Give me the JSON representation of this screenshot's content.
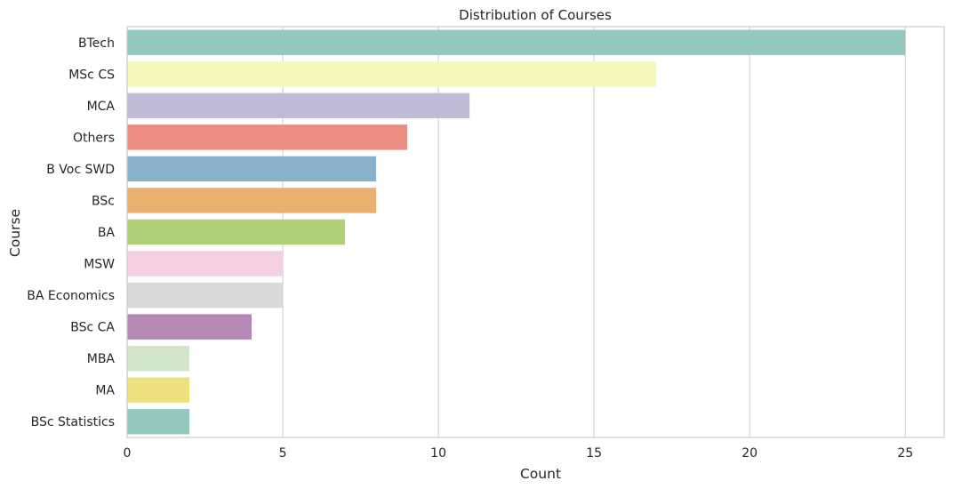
{
  "chart_data": {
    "type": "bar",
    "orientation": "horizontal",
    "title": "Distribution of Courses",
    "xlabel": "Count",
    "ylabel": "Course",
    "xlim": [
      0,
      26.25
    ],
    "xticks": [
      0,
      5,
      10,
      15,
      20,
      25
    ],
    "grid": true,
    "categories": [
      "BTech",
      "MSc CS",
      "MCA",
      "Others",
      "B Voc SWD",
      "BSc",
      "BA",
      "MSW",
      "BA Economics",
      "BSc CA",
      "MBA",
      "MA",
      "BSc Statistics"
    ],
    "values": [
      25,
      17,
      11,
      9,
      8,
      8,
      7,
      5,
      5,
      4,
      2,
      2,
      2
    ],
    "colors": [
      "#94c9bf",
      "#f7f6bb",
      "#c0bcd6",
      "#ea8c80",
      "#89afca",
      "#ebb06f",
      "#b0cf77",
      "#f5d0e3",
      "#d9d9d9",
      "#b588b6",
      "#d1e6c8",
      "#ede07e",
      "#94c9bf"
    ]
  }
}
